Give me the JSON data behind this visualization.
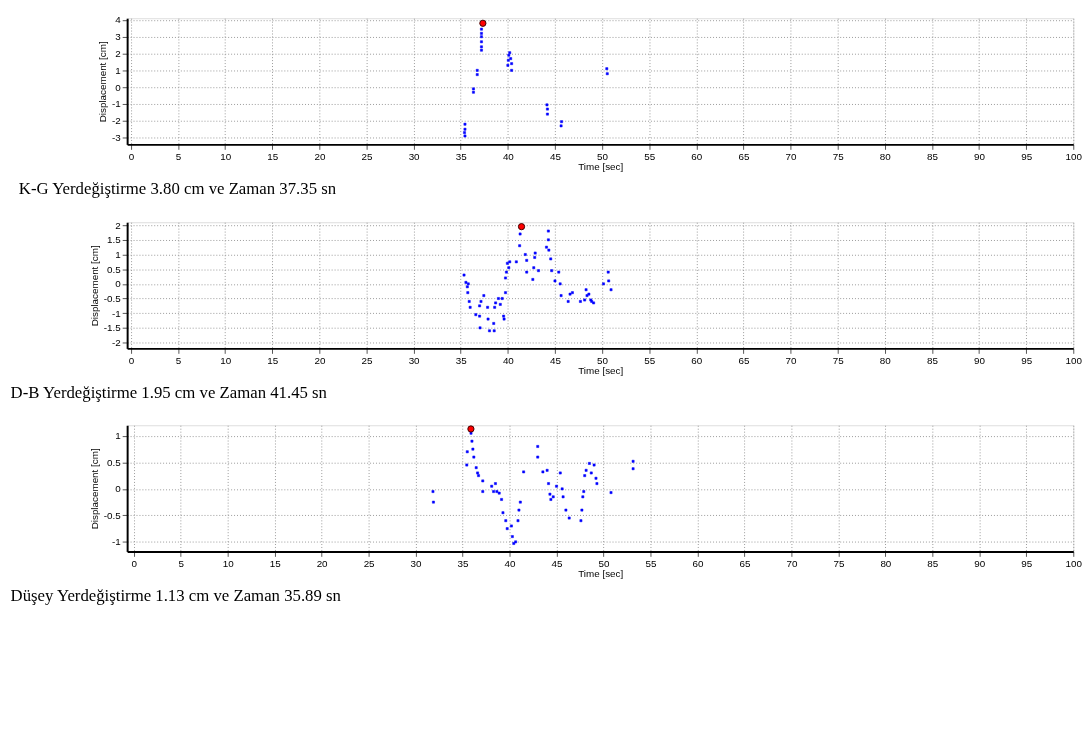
{
  "chart_data": [
    {
      "type": "scatter",
      "xlabel": "Time [sec]",
      "ylabel": "Displacement [cm]",
      "xlim": [
        -0.4,
        100
      ],
      "ylim": [
        -3.4,
        4.1
      ],
      "xticks": [
        0,
        5,
        10,
        15,
        20,
        25,
        30,
        35,
        40,
        45,
        50,
        55,
        60,
        65,
        70,
        75,
        80,
        85,
        90,
        95,
        100
      ],
      "yticks": [
        -3,
        -2,
        -1,
        0,
        1,
        2,
        3,
        4
      ],
      "grid": true,
      "annotations": [
        "K-G Yerdeğiştirme 3.80 cm ve Zaman 37.35 sn"
      ],
      "series": [
        {
          "color": "#0000ff",
          "marker": "square",
          "x": [
            35.45,
            35.45,
            35.45,
            35.4,
            36.35,
            36.35,
            36.75,
            36.75,
            37.2,
            37.2,
            37.2,
            37.2,
            37.2,
            37.2,
            40.0,
            40.05,
            40.1,
            40.2,
            40.3,
            40.4,
            40.4,
            44.15,
            44.2,
            44.2,
            45.7,
            45.65,
            50.5,
            50.55
          ],
          "values": [
            -2.2,
            -2.5,
            -2.9,
            -2.7,
            -0.1,
            -0.3,
            1.0,
            0.75,
            3.45,
            3.2,
            3.0,
            2.7,
            2.4,
            2.2,
            1.3,
            1.6,
            1.9,
            2.05,
            1.7,
            1.4,
            1.0,
            -1.05,
            -1.3,
            -1.6,
            -2.05,
            -2.3,
            1.1,
            0.8
          ]
        },
        {
          "color": "#ff0000",
          "marker": "circle",
          "x": [
            37.35
          ],
          "values": [
            3.8
          ]
        }
      ]
    },
    {
      "type": "scatter",
      "xlabel": "Time [sec]",
      "ylabel": "Displacement [cm]",
      "xlim": [
        -0.4,
        100
      ],
      "ylim": [
        -2.2,
        2.1
      ],
      "xticks": [
        0,
        5,
        10,
        15,
        20,
        25,
        30,
        35,
        40,
        45,
        50,
        55,
        60,
        65,
        70,
        75,
        80,
        85,
        90,
        95,
        100
      ],
      "yticks": [
        -2,
        -1.5,
        -1,
        -0.5,
        0,
        0.5,
        1,
        1.5,
        2
      ],
      "grid": true,
      "annotations": [
        "D-B Yerdeğiştirme 1.95 cm ve Zaman 41.45 sn"
      ],
      "series": [
        {
          "color": "#0000ff",
          "marker": "square",
          "x": [
            35.35,
            35.55,
            35.7,
            35.8,
            35.75,
            35.9,
            36.0,
            36.6,
            37.0,
            37.0,
            37.05,
            37.15,
            37.45,
            37.85,
            37.9,
            38.05,
            38.5,
            38.55,
            38.6,
            38.7,
            39.0,
            39.2,
            39.4,
            39.55,
            39.6,
            39.75,
            39.75,
            39.85,
            39.95,
            40.1,
            40.2,
            40.9,
            41.25,
            41.3,
            41.85,
            42.0,
            42.0,
            42.65,
            42.75,
            42.85,
            42.9,
            43.25,
            44.1,
            44.3,
            44.3,
            44.35,
            44.55,
            44.65,
            45.0,
            45.4,
            45.55,
            45.65,
            46.4,
            46.6,
            46.85,
            47.7,
            48.15,
            48.3,
            48.4,
            48.6,
            48.8,
            48.9,
            49.1,
            50.15,
            50.65,
            50.7,
            50.95
          ],
          "values": [
            0.3,
            0.05,
            -0.1,
            0.0,
            -0.3,
            -0.6,
            -0.8,
            -1.05,
            -0.75,
            -1.1,
            -1.5,
            -0.6,
            -0.4,
            -0.8,
            -1.2,
            -1.6,
            -1.35,
            -1.6,
            -0.8,
            -0.65,
            -0.5,
            -0.7,
            -0.5,
            -1.1,
            -1.2,
            -0.3,
            0.2,
            0.4,
            0.7,
            0.55,
            0.75,
            0.75,
            1.3,
            1.7,
            1.0,
            0.8,
            0.4,
            0.15,
            0.55,
            0.9,
            1.05,
            0.45,
            1.25,
            1.8,
            1.5,
            1.15,
            0.85,
            0.45,
            0.1,
            0.4,
            0.0,
            -0.4,
            -0.6,
            -0.35,
            -0.3,
            -0.6,
            -0.55,
            -0.2,
            -0.4,
            -0.35,
            -0.55,
            -0.6,
            -0.65,
            0.0,
            0.4,
            0.1,
            -0.2
          ]
        },
        {
          "color": "#ff0000",
          "marker": "circle",
          "x": [
            41.45
          ],
          "values": [
            1.95
          ]
        }
      ]
    },
    {
      "type": "scatter",
      "xlabel": "Time [sec]",
      "ylabel": "Displacement [cm]",
      "xlim": [
        -0.7,
        100
      ],
      "ylim": [
        -1.18,
        1.2
      ],
      "xticks": [
        0,
        5,
        10,
        15,
        20,
        25,
        30,
        35,
        40,
        45,
        50,
        55,
        60,
        65,
        70,
        75,
        80,
        85,
        90,
        95,
        100
      ],
      "yticks": [
        -1,
        -0.5,
        0,
        0.5,
        1
      ],
      "grid": true,
      "annotations": [
        "Düşey Yerdeğiştirme 1.13 cm ve Zaman 35.89 sn"
      ],
      "series": [
        {
          "color": "#0000ff",
          "marker": "square",
          "x": [
            31.85,
            31.9,
            35.45,
            35.5,
            35.9,
            36.0,
            36.1,
            36.2,
            36.45,
            36.6,
            36.7,
            37.15,
            37.15,
            38.1,
            38.3,
            38.5,
            38.65,
            38.9,
            39.15,
            39.3,
            39.6,
            39.75,
            40.2,
            40.3,
            40.45,
            40.65,
            40.9,
            41.0,
            41.15,
            41.5,
            43.0,
            43.0,
            43.55,
            44.0,
            44.15,
            44.3,
            44.4,
            44.65,
            45.0,
            45.4,
            45.6,
            45.7,
            46.0,
            46.35,
            47.6,
            47.7,
            47.8,
            47.9,
            48.0,
            48.15,
            48.5,
            48.7,
            49.0,
            49.2,
            49.3,
            50.8,
            53.15,
            53.15
          ],
          "values": [
            -0.05,
            -0.25,
            0.45,
            0.7,
            1.05,
            0.9,
            0.75,
            0.6,
            0.4,
            0.3,
            0.25,
            0.15,
            -0.05,
            0.05,
            -0.05,
            0.1,
            -0.05,
            -0.08,
            -0.2,
            -0.45,
            -0.6,
            -0.75,
            -0.7,
            -0.9,
            -1.03,
            -1.0,
            -0.6,
            -0.4,
            -0.25,
            0.32,
            0.8,
            0.6,
            0.32,
            0.35,
            0.1,
            -0.1,
            -0.2,
            -0.15,
            0.05,
            0.3,
            0.0,
            -0.15,
            -0.4,
            -0.55,
            -0.6,
            -0.4,
            -0.15,
            -0.05,
            0.25,
            0.35,
            0.48,
            0.3,
            0.45,
            0.2,
            0.1,
            -0.07,
            0.52,
            0.38
          ]
        },
        {
          "color": "#ff0000",
          "marker": "circle",
          "x": [
            35.89
          ],
          "values": [
            1.13
          ]
        }
      ]
    }
  ]
}
